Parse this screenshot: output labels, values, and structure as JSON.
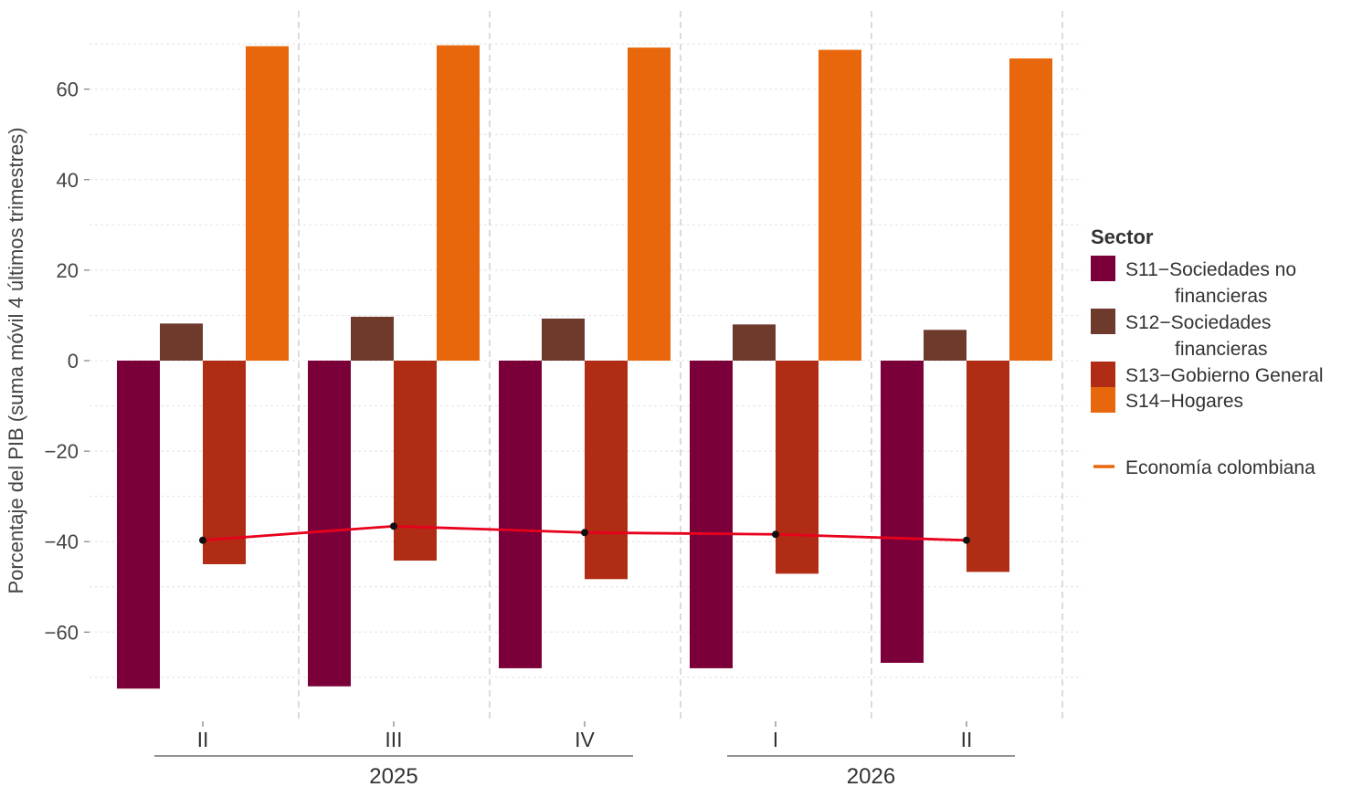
{
  "chart_data": {
    "type": "bar",
    "ylabel": "Porcentaje del PIB (suma móvil 4 últimos trimestres)",
    "ylim": [
      -78,
      70
    ],
    "yticks": [
      -60,
      -40,
      -20,
      0,
      20,
      40,
      60
    ],
    "grid": true,
    "legend_position": "right",
    "legend_title": "Sector",
    "categories": [
      "II",
      "III",
      "IV",
      "I",
      "II"
    ],
    "year_groups": [
      {
        "label": "2025",
        "from": 0,
        "to": 2
      },
      {
        "label": "2026",
        "from": 3,
        "to": 4
      }
    ],
    "series": [
      {
        "name": "S11−Sociedades no financieras",
        "legend_lines": [
          "S11−Sociedades no",
          "financieras"
        ],
        "color": "#7b0039",
        "values": [
          -72.5,
          -72.0,
          -68.0,
          -68.0,
          -66.8
        ]
      },
      {
        "name": "S12−Sociedades financieras",
        "legend_lines": [
          "S12−Sociedades",
          "financieras"
        ],
        "color": "#6e3a2c",
        "values": [
          8.2,
          9.7,
          9.3,
          8.0,
          6.8
        ]
      },
      {
        "name": "S13−Gobierno General",
        "legend_lines": [
          "S13−Gobierno General"
        ],
        "color": "#b02c15",
        "values": [
          -45.0,
          -44.2,
          -48.3,
          -47.1,
          -46.7
        ]
      },
      {
        "name": "S14−Hogares",
        "legend_lines": [
          "S14−Hogares"
        ],
        "color": "#e9670c",
        "values": [
          69.5,
          69.7,
          69.2,
          68.7,
          66.8
        ]
      }
    ],
    "line": {
      "name": "Economía colombiana",
      "color": "#e8001c",
      "legend_color": "#e9670c",
      "values": [
        -39.7,
        -36.6,
        -38.0,
        -38.4,
        -39.7
      ]
    }
  }
}
